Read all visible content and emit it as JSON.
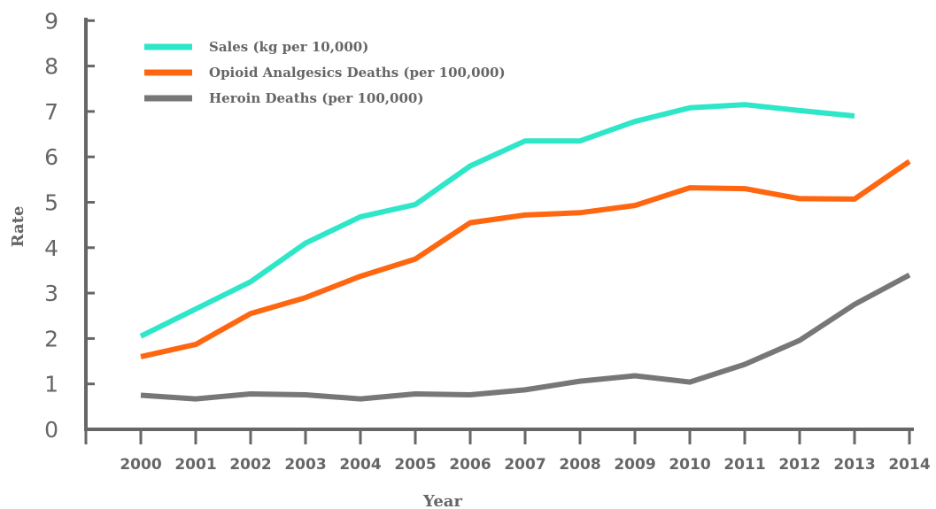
{
  "chart_data": {
    "type": "line",
    "title": "",
    "xlabel": "Year",
    "ylabel": "Rate",
    "ylim": [
      0,
      9
    ],
    "yticks": [
      "0",
      "1",
      "2",
      "3",
      "4",
      "5",
      "6",
      "7",
      "8",
      "9"
    ],
    "x": [
      "2000",
      "2001",
      "2002",
      "2003",
      "2004",
      "2005",
      "2006",
      "2007",
      "2008",
      "2009",
      "2010",
      "2011",
      "2012",
      "2013",
      "2014"
    ],
    "grid": false,
    "legend_position": "top-left",
    "series": [
      {
        "name": "Sales (kg per 10,000)",
        "color": "#2ee6c8",
        "values": [
          2.05,
          2.65,
          3.25,
          4.1,
          4.68,
          4.95,
          5.8,
          6.35,
          6.35,
          6.78,
          7.08,
          7.15,
          7.02,
          6.9,
          null
        ]
      },
      {
        "name": "Opioid Analgesics Deaths (per 100,000)",
        "color": "#ff6610",
        "values": [
          1.6,
          1.87,
          2.55,
          2.9,
          3.37,
          3.75,
          4.55,
          4.72,
          4.77,
          4.93,
          5.32,
          5.3,
          5.08,
          5.07,
          5.9
        ]
      },
      {
        "name": "Heroin Deaths (per 100,000)",
        "color": "#777777",
        "values": [
          0.75,
          0.67,
          0.78,
          0.76,
          0.67,
          0.78,
          0.76,
          0.87,
          1.06,
          1.18,
          1.04,
          1.43,
          1.96,
          2.75,
          3.4
        ]
      }
    ]
  }
}
